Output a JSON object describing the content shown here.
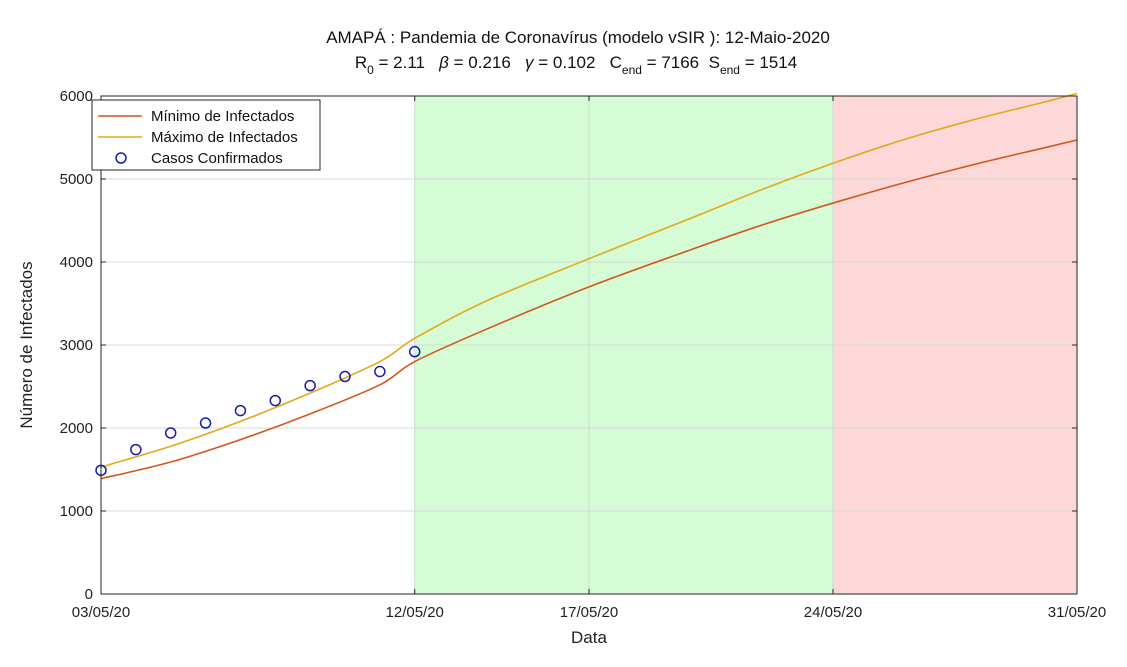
{
  "chart_data": {
    "type": "line",
    "title": "AMAPÁ : Pandemia de Coronavírus (modelo vSIR ): 12-Maio-2020",
    "subtitle": {
      "r0_label": "R",
      "r0_sub": "0",
      "r0_value": "=  2.11",
      "beta_label": "β",
      "beta_value": "=  0.216",
      "gamma_label": "γ",
      "gamma_value": "=  0.102",
      "cend_label": "C",
      "cend_sub": "end",
      "cend_value": "=  7166",
      "send_label": "S",
      "send_sub": "end",
      "send_value": "=  1514"
    },
    "xlabel": "Data",
    "ylabel": "Número de Infectados",
    "x_range_day": [
      3,
      31
    ],
    "ylim": [
      0,
      6000
    ],
    "yticks": [
      0,
      1000,
      2000,
      3000,
      4000,
      5000,
      6000
    ],
    "xticks": [
      {
        "day": 3,
        "label": "03/05/20"
      },
      {
        "day": 12,
        "label": "12/05/20"
      },
      {
        "day": 17,
        "label": "17/05/20"
      },
      {
        "day": 24,
        "label": "24/05/20"
      },
      {
        "day": 31,
        "label": "31/05/20"
      }
    ],
    "grid": true,
    "legend_position": "top-left",
    "regions": [
      {
        "from_day": 12,
        "to_day": 24,
        "color": "#d6fcd6"
      },
      {
        "from_day": 24,
        "to_day": 31,
        "color": "#fcd8d8"
      }
    ],
    "series": [
      {
        "name": "Mínimo de Infectados",
        "kind": "line",
        "color": "#d2571e",
        "x_day": [
          3,
          5,
          7,
          9,
          11,
          12,
          14,
          17,
          20,
          22,
          24,
          26,
          28,
          30,
          31
        ],
        "values": [
          1390,
          1590,
          1860,
          2170,
          2520,
          2800,
          3180,
          3700,
          4160,
          4450,
          4710,
          4950,
          5170,
          5370,
          5470
        ]
      },
      {
        "name": "Máximo de Infectados",
        "kind": "line",
        "color": "#e3a81b",
        "x_day": [
          3,
          5,
          7,
          9,
          11,
          12,
          14,
          17,
          20,
          22,
          24,
          26,
          28,
          30,
          31
        ],
        "values": [
          1530,
          1780,
          2080,
          2420,
          2800,
          3080,
          3520,
          4040,
          4540,
          4880,
          5190,
          5470,
          5710,
          5920,
          6030
        ]
      },
      {
        "name": "Casos Confirmados",
        "kind": "scatter",
        "color": "#1a1aa8",
        "x_day": [
          3,
          4,
          5,
          6,
          7,
          8,
          9,
          10,
          11,
          12
        ],
        "values": [
          1490,
          1740,
          1940,
          2060,
          2210,
          2330,
          2510,
          2620,
          2680,
          2920
        ]
      }
    ]
  }
}
